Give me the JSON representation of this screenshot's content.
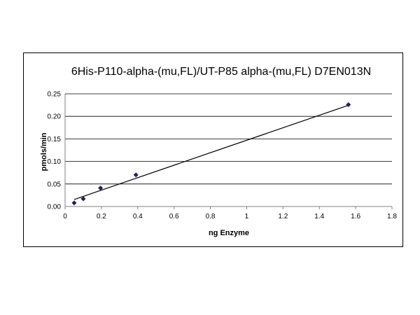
{
  "chart_data": {
    "type": "scatter",
    "title": "6His-P110-alpha-(mu,FL)/UT-P85 alpha-(mu,FL) D7EN013N",
    "xlabel": "ng Enzyme",
    "ylabel": "pmols/min",
    "xlim": [
      0,
      1.8
    ],
    "ylim": [
      0,
      0.25
    ],
    "xticks": [
      "0",
      "0.2",
      "0.4",
      "0.6",
      "0.8",
      "1",
      "1.2",
      "1.4",
      "1.6",
      "1.8"
    ],
    "yticks": [
      "0.00",
      "0.05",
      "0.10",
      "0.15",
      "0.20",
      "0.25"
    ],
    "grid": "horizontal",
    "legend": "none",
    "series": [
      {
        "x": [
          0.05,
          0.1,
          0.195,
          0.39,
          1.56
        ],
        "y": [
          0.008,
          0.017,
          0.041,
          0.07,
          0.226
        ],
        "marker": "diamond",
        "color": "#1f1f5f"
      }
    ],
    "trendline": {
      "type": "linear",
      "x": [
        0.05,
        1.56
      ],
      "y": [
        0.0155,
        0.2245
      ],
      "color": "#000000"
    }
  }
}
